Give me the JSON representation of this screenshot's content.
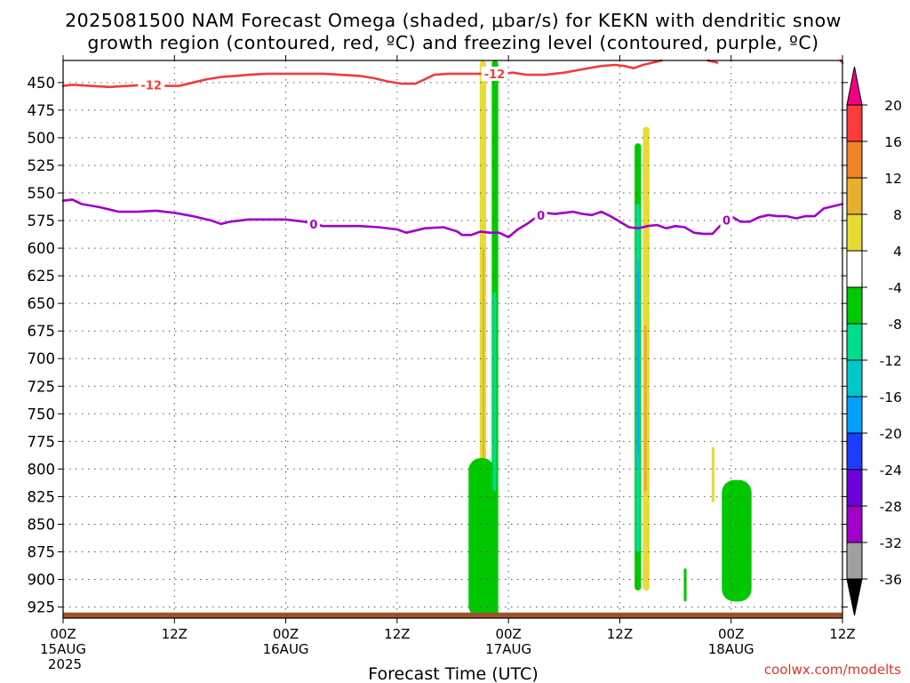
{
  "title": {
    "line1": "2025081500 NAM Forecast Omega (shaded, μbar/s) for KEKN with dendritic snow",
    "line2": "growth region (contoured, red, ºC) and freezing level (contoured, purple, ºC)"
  },
  "credit": "coolwx.com/modelts",
  "chart_data": {
    "type": "time-height cross section",
    "xlabel": "Forecast Time (UTC)",
    "x_unit": "forecast hour",
    "xlim": [
      0,
      84
    ],
    "y_unit": "hPa",
    "ylim": [
      935,
      430
    ],
    "y_ticks": [
      450,
      475,
      500,
      525,
      550,
      575,
      600,
      625,
      650,
      675,
      700,
      725,
      750,
      775,
      800,
      825,
      850,
      875,
      900,
      925
    ],
    "x_ticks": [
      {
        "hour": 0,
        "labels": [
          "00Z",
          "15AUG",
          "2025"
        ]
      },
      {
        "hour": 12,
        "labels": [
          "12Z"
        ]
      },
      {
        "hour": 24,
        "labels": [
          "00Z",
          "16AUG"
        ]
      },
      {
        "hour": 36,
        "labels": [
          "12Z"
        ]
      },
      {
        "hour": 48,
        "labels": [
          "00Z",
          "17AUG"
        ]
      },
      {
        "hour": 60,
        "labels": [
          "12Z"
        ]
      },
      {
        "hour": 72,
        "labels": [
          "00Z",
          "18AUG"
        ]
      },
      {
        "hour": 84,
        "labels": [
          "12Z"
        ]
      }
    ],
    "grid": true,
    "colorbar": {
      "levels": [
        -36,
        -32,
        -28,
        -24,
        -20,
        -16,
        -12,
        -8,
        -4,
        4,
        8,
        12,
        16,
        20
      ],
      "tick_labels": [
        "-36",
        "-32",
        "-28",
        "-24",
        "-20",
        "-16",
        "-12",
        "-8",
        "-4",
        "4",
        "8",
        "12",
        "16",
        "20"
      ],
      "colors": [
        "#a0a0a0",
        "#a000c8",
        "#6e00dc",
        "#1e3cff",
        "#00a0ff",
        "#00c8c8",
        "#00dc8c",
        "#00c800",
        "#ffffff",
        "#e6dc32",
        "#e6af2d",
        "#f08228",
        "#fa3c3c",
        "#f00082"
      ],
      "below_color": "#000000"
    },
    "contours": [
      {
        "name": "-12",
        "color": "#f03c3c",
        "labels": [
          {
            "text": "-12",
            "hour": 9.5
          },
          {
            "text": "-12",
            "hour": 46.5
          }
        ],
        "points": [
          [
            0,
            453
          ],
          [
            1,
            452
          ],
          [
            3,
            453
          ],
          [
            5,
            454
          ],
          [
            7,
            453
          ],
          [
            9,
            452
          ],
          [
            11,
            453
          ],
          [
            12.5,
            453
          ],
          [
            14,
            450
          ],
          [
            15.5,
            447
          ],
          [
            17,
            445
          ],
          [
            18.5,
            444
          ],
          [
            20,
            443
          ],
          [
            22,
            442
          ],
          [
            24,
            442
          ],
          [
            26,
            442
          ],
          [
            28,
            442
          ],
          [
            30,
            443
          ],
          [
            32,
            444
          ],
          [
            33.5,
            446
          ],
          [
            35,
            449
          ],
          [
            36.5,
            451
          ],
          [
            38,
            451
          ],
          [
            39,
            447
          ],
          [
            40,
            443
          ],
          [
            41.5,
            442
          ],
          [
            43,
            442
          ],
          [
            45,
            442
          ],
          [
            47,
            442
          ],
          [
            48.5,
            441
          ],
          [
            50,
            443
          ],
          [
            52,
            443
          ],
          [
            54,
            441
          ],
          [
            56,
            438
          ],
          [
            58,
            435
          ],
          [
            59.5,
            434
          ],
          [
            60.5,
            435
          ],
          [
            61.5,
            437
          ],
          [
            62.5,
            434
          ],
          [
            63.5,
            432
          ],
          [
            64.5,
            430
          ]
        ]
      },
      {
        "name": "-12",
        "color": "#f03c3c",
        "labels": [],
        "points": [
          [
            69.5,
            430
          ],
          [
            70.5,
            432
          ]
        ]
      },
      {
        "name": "-12",
        "color": "#f03c3c",
        "labels": [],
        "points": [
          [
            83.8,
            430
          ],
          [
            84,
            432
          ]
        ]
      },
      {
        "name": "0",
        "color": "#a000c8",
        "labels": [
          {
            "text": "0",
            "hour": 27
          },
          {
            "text": "0",
            "hour": 51.5
          },
          {
            "text": "0",
            "hour": 71.5
          }
        ],
        "points": [
          [
            0,
            557
          ],
          [
            1,
            556
          ],
          [
            2,
            560
          ],
          [
            4,
            563
          ],
          [
            6,
            567
          ],
          [
            8,
            567
          ],
          [
            10,
            566
          ],
          [
            12,
            568
          ],
          [
            14,
            571
          ],
          [
            16,
            575
          ],
          [
            17,
            578
          ],
          [
            18,
            576
          ],
          [
            20,
            574
          ],
          [
            22,
            574
          ],
          [
            24,
            574
          ],
          [
            26,
            576
          ],
          [
            28,
            580
          ],
          [
            30,
            580
          ],
          [
            32,
            580
          ],
          [
            34,
            581
          ],
          [
            36,
            583
          ],
          [
            37,
            586
          ],
          [
            38,
            584
          ],
          [
            39,
            582
          ],
          [
            41,
            581
          ],
          [
            42.5,
            585
          ],
          [
            43,
            588
          ],
          [
            44,
            588
          ],
          [
            45,
            585
          ],
          [
            46,
            586
          ],
          [
            47,
            586
          ],
          [
            48,
            590
          ],
          [
            49,
            583
          ],
          [
            50,
            578
          ],
          [
            51,
            572
          ],
          [
            52,
            568
          ],
          [
            53,
            569
          ],
          [
            54,
            568
          ],
          [
            55,
            567
          ],
          [
            56,
            569
          ],
          [
            57,
            570
          ],
          [
            58,
            567
          ],
          [
            59,
            571
          ],
          [
            60,
            576
          ],
          [
            61,
            581
          ],
          [
            62,
            582
          ],
          [
            63,
            580
          ],
          [
            64,
            579
          ],
          [
            65,
            582
          ],
          [
            66,
            580
          ],
          [
            67,
            581
          ],
          [
            68,
            586
          ],
          [
            69,
            587
          ],
          [
            70,
            587
          ],
          [
            71,
            578
          ],
          [
            72,
            571
          ],
          [
            73,
            576
          ],
          [
            74,
            576
          ],
          [
            75,
            572
          ],
          [
            76,
            570
          ],
          [
            77,
            571
          ],
          [
            78,
            571
          ],
          [
            79,
            573
          ],
          [
            80,
            571
          ],
          [
            81,
            571
          ],
          [
            82,
            564
          ],
          [
            83,
            562
          ],
          [
            84,
            560
          ]
        ]
      }
    ],
    "omega_regions": [
      {
        "interval": "4 to 8",
        "hour_range": [
          44.9,
          45.6
        ],
        "pressure_range": [
          430,
          800
        ]
      },
      {
        "interval": "8 to 12",
        "hour_range": [
          45.2,
          45.4
        ],
        "pressure_range": [
          600,
          800
        ]
      },
      {
        "interval": "-8 to -4",
        "hour_range": [
          43.7,
          46.5
        ],
        "pressure_range": [
          790,
          935
        ]
      },
      {
        "interval": "-8 to -4",
        "hour_range": [
          46.2,
          46.9
        ],
        "pressure_range": [
          430,
          935
        ]
      },
      {
        "interval": "-12 to -8",
        "hour_range": [
          46.3,
          46.7
        ],
        "pressure_range": [
          640,
          820
        ]
      },
      {
        "interval": "-8 to -4",
        "hour_range": [
          61.6,
          62.3
        ],
        "pressure_range": [
          505,
          910
        ]
      },
      {
        "interval": "-12 to -8",
        "hour_range": [
          61.7,
          62.2
        ],
        "pressure_range": [
          560,
          875
        ]
      },
      {
        "interval": "-16 to -12",
        "hour_range": [
          61.8,
          62.15
        ],
        "pressure_range": [
          610,
          800
        ]
      },
      {
        "interval": "-20 to -16",
        "hour_range": [
          61.9,
          62.05
        ],
        "pressure_range": [
          620,
          785
        ]
      },
      {
        "interval": "4 to 8",
        "hour_range": [
          62.5,
          63.2
        ],
        "pressure_range": [
          490,
          910
        ]
      },
      {
        "interval": "8 to 12",
        "hour_range": [
          62.6,
          62.9
        ],
        "pressure_range": [
          670,
          820
        ]
      },
      {
        "interval": "4 to 8",
        "hour_range": [
          69.9,
          70.2
        ],
        "pressure_range": [
          780,
          830
        ]
      },
      {
        "interval": "-8 to -4",
        "hour_range": [
          66.9,
          67.2
        ],
        "pressure_range": [
          890,
          920
        ]
      },
      {
        "interval": "-8 to -4",
        "hour_range": [
          71.0,
          74.2
        ],
        "pressure_range": [
          810,
          920
        ]
      }
    ],
    "terrain": {
      "color": "#a0522d",
      "surface_pressure": 930
    }
  }
}
